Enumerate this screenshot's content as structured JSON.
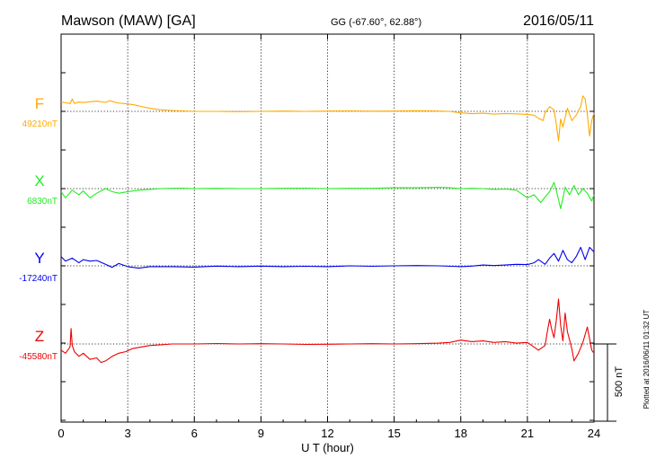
{
  "header": {
    "station": "Mawson (MAW)  [GA]",
    "coords": "GG (-67.60°,  62.88°)",
    "date": "2016/05/11"
  },
  "side_note": "Plotted at 2016/06/11 01:32 UT",
  "scale_label": "500 nT",
  "chart_data": {
    "type": "line",
    "xlabel": "U T (hour)",
    "xlim": [
      0,
      24
    ],
    "xticks": [
      "0",
      "3",
      "6",
      "9",
      "12",
      "15",
      "18",
      "21",
      "24"
    ],
    "grid": true,
    "scale_bar_nT": 500,
    "series": [
      {
        "name": "F",
        "baseline_label": "49210nT",
        "color": "#ffaa00",
        "x": [
          0,
          0.25,
          0.4,
          0.5,
          0.6,
          0.8,
          1.0,
          1.3,
          1.6,
          2.0,
          2.2,
          2.5,
          3.0,
          3.3,
          3.6,
          4.0,
          4.5,
          5.0,
          5.5,
          6.0,
          7,
          8,
          9,
          10,
          11,
          12,
          13,
          14,
          15,
          16,
          17,
          17.5,
          18,
          18.5,
          19,
          19.5,
          20,
          20.5,
          21,
          21.3,
          21.5,
          21.7,
          21.8,
          22.0,
          22.2,
          22.3,
          22.4,
          22.5,
          22.6,
          22.7,
          22.8,
          23.0,
          23.2,
          23.4,
          23.5,
          23.6,
          23.7,
          23.8,
          23.9,
          24
        ],
        "y": [
          60,
          55,
          50,
          80,
          52,
          60,
          57,
          62,
          66,
          58,
          70,
          55,
          48,
          42,
          32,
          20,
          10,
          6,
          3,
          0,
          0,
          -2,
          0,
          2,
          0,
          2,
          3,
          1,
          2,
          4,
          2,
          0,
          -10,
          -15,
          -12,
          -18,
          -14,
          -16,
          -20,
          -25,
          -45,
          -60,
          -10,
          30,
          10,
          -80,
          -190,
          -50,
          -100,
          -40,
          20,
          -60,
          -25,
          30,
          100,
          80,
          -20,
          -160,
          -60,
          -10
        ]
      },
      {
        "name": "X",
        "baseline_label": "6830nT",
        "color": "#22ee22",
        "x": [
          0,
          0.2,
          0.5,
          0.8,
          1.0,
          1.3,
          1.6,
          2.0,
          2.3,
          2.6,
          3.0,
          3.5,
          4.0,
          4.5,
          5.0,
          5.5,
          6,
          7,
          8,
          9,
          10,
          11,
          12,
          13,
          14,
          15,
          16,
          17,
          17.5,
          18,
          18.5,
          19,
          19.5,
          20,
          20.5,
          21,
          21.3,
          21.6,
          22.0,
          22.2,
          22.3,
          22.5,
          22.7,
          22.9,
          23.1,
          23.3,
          23.5,
          23.7,
          23.9,
          24
        ],
        "y": [
          -20,
          -60,
          -10,
          -40,
          -15,
          -60,
          -30,
          0,
          -20,
          -30,
          -20,
          -10,
          -5,
          0,
          2,
          3,
          0,
          2,
          0,
          0,
          2,
          3,
          0,
          2,
          2,
          5,
          5,
          8,
          5,
          0,
          2,
          0,
          -5,
          -3,
          -10,
          -60,
          -40,
          -90,
          -20,
          40,
          -10,
          -130,
          10,
          -40,
          20,
          -40,
          0,
          -30,
          -80,
          -40
        ]
      },
      {
        "name": "Y",
        "baseline_label": "-17240nT",
        "color": "#0000ee",
        "x": [
          0,
          0.2,
          0.5,
          0.8,
          1.0,
          1.3,
          1.6,
          2.0,
          2.3,
          2.6,
          3.0,
          3.5,
          4.0,
          5,
          6,
          7,
          8,
          9,
          10,
          11,
          12,
          13,
          14,
          15,
          16,
          17,
          18,
          18.5,
          19,
          19.5,
          20,
          20.5,
          21,
          21.3,
          21.5,
          21.8,
          22.0,
          22.2,
          22.4,
          22.6,
          22.8,
          23.0,
          23.2,
          23.4,
          23.6,
          23.8,
          24
        ],
        "y": [
          60,
          30,
          50,
          20,
          40,
          30,
          35,
          10,
          -10,
          15,
          -5,
          -15,
          -5,
          -5,
          -8,
          -2,
          -5,
          -2,
          -5,
          -3,
          -5,
          0,
          -3,
          0,
          2,
          0,
          -5,
          -2,
          5,
          2,
          5,
          10,
          8,
          20,
          40,
          10,
          50,
          80,
          30,
          100,
          40,
          20,
          60,
          120,
          40,
          120,
          90
        ]
      },
      {
        "name": "Z",
        "baseline_label": "-45580nT",
        "color": "#ee0000",
        "x": [
          0,
          0.2,
          0.4,
          0.45,
          0.5,
          0.6,
          0.8,
          1.0,
          1.3,
          1.6,
          1.8,
          2.0,
          2.3,
          2.6,
          2.9,
          3.2,
          3.6,
          4.0,
          4.5,
          5.0,
          6,
          7,
          8,
          9,
          10,
          11,
          12,
          13,
          14,
          15,
          16,
          17,
          17.5,
          18,
          18.5,
          19,
          19.5,
          20,
          20.5,
          21,
          21.3,
          21.5,
          21.8,
          21.9,
          22.0,
          22.1,
          22.2,
          22.3,
          22.4,
          22.5,
          22.6,
          22.7,
          22.8,
          23.0,
          23.1,
          23.3,
          23.5,
          23.7,
          23.9,
          24
        ],
        "y": [
          -40,
          -60,
          -20,
          100,
          -10,
          -50,
          -80,
          -60,
          -100,
          -90,
          -120,
          -110,
          -80,
          -60,
          -50,
          -30,
          -20,
          -10,
          -5,
          0,
          0,
          3,
          0,
          2,
          0,
          -3,
          -2,
          0,
          2,
          0,
          2,
          5,
          10,
          25,
          15,
          20,
          10,
          15,
          5,
          10,
          -20,
          -40,
          -10,
          80,
          160,
          90,
          40,
          150,
          290,
          120,
          20,
          200,
          80,
          -30,
          -110,
          -60,
          10,
          110,
          -40,
          -60
        ]
      }
    ]
  }
}
